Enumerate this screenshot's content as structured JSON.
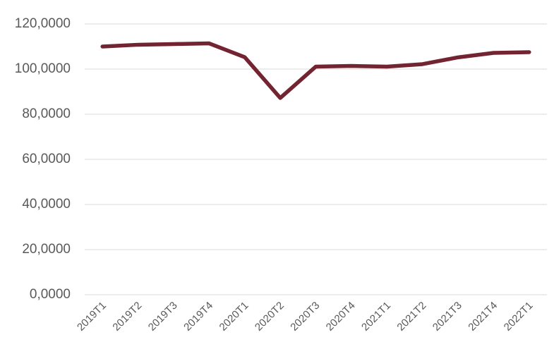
{
  "chart_data": {
    "type": "line",
    "categories": [
      "2019T1",
      "2019T2",
      "2019T3",
      "2019T4",
      "2020T1",
      "2020T2",
      "2020T3",
      "2020T4",
      "2021T1",
      "2021T2",
      "2021T3",
      "2021T4",
      "2022T1"
    ],
    "series": [
      {
        "color": "#722530",
        "values": [
          110.0,
          110.8,
          111.1,
          111.4,
          105.3,
          87.2,
          101.1,
          101.4,
          101.1,
          102.2,
          105.2,
          107.2,
          107.5
        ]
      }
    ],
    "ylim": [
      0,
      120
    ],
    "yticks": [
      {
        "value": 0,
        "label": "0,0000"
      },
      {
        "value": 20,
        "label": "20,0000"
      },
      {
        "value": 40,
        "label": "40,0000"
      },
      {
        "value": 60,
        "label": "60,0000"
      },
      {
        "value": 80,
        "label": "80,0000"
      },
      {
        "value": 100,
        "label": "100,0000"
      },
      {
        "value": 120,
        "label": "120,0000"
      }
    ],
    "grid": true
  }
}
